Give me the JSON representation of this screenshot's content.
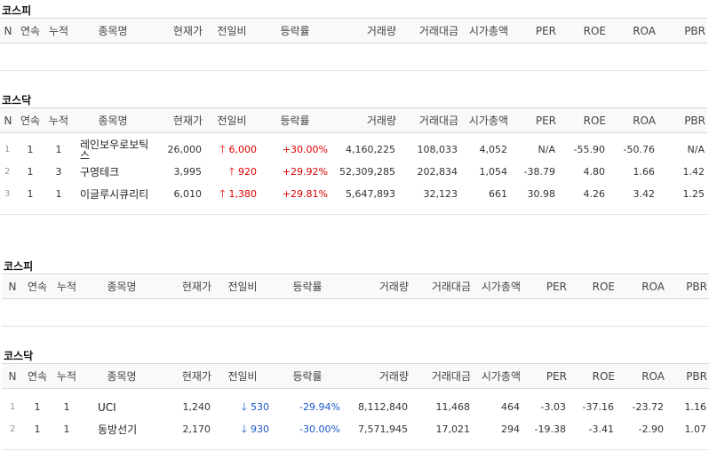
{
  "headers": [
    "N",
    "연속",
    "누적",
    "종목명",
    "현재가",
    "전일비",
    "등락률",
    "거래량",
    "거래대금",
    "시가총액",
    "PER",
    "ROE",
    "ROA",
    "PBR"
  ],
  "colors": {
    "up": "#dd0000",
    "down": "#1a58c9"
  },
  "s1": {
    "title": "코스피"
  },
  "s2": {
    "title": "코스닥",
    "rows": [
      {
        "n": "1",
        "cons": "1",
        "cum": "1",
        "name": "레인보우로보틱스",
        "price": "26,000",
        "arrow": "up-arrow-icon",
        "diff": "6,000",
        "rate": "+30.00%",
        "vol": "4,160,225",
        "amt": "108,033",
        "cap": "4,052",
        "per": "N/A",
        "roe": "-55.90",
        "roa": "-50.76",
        "pbr": "N/A"
      },
      {
        "n": "2",
        "cons": "1",
        "cum": "3",
        "name": "구영테크",
        "price": "3,995",
        "arrow": "up-arrow-icon",
        "diff": "920",
        "rate": "+29.92%",
        "vol": "52,309,285",
        "amt": "202,834",
        "cap": "1,054",
        "per": "-38.79",
        "roe": "4.80",
        "roa": "1.66",
        "pbr": "1.42"
      },
      {
        "n": "3",
        "cons": "1",
        "cum": "1",
        "name": "이글루시큐리티",
        "price": "6,010",
        "arrow": "up-arrow-icon",
        "diff": "1,380",
        "rate": "+29.81%",
        "vol": "5,647,893",
        "amt": "32,123",
        "cap": "661",
        "per": "30.98",
        "roe": "4.26",
        "roa": "3.42",
        "pbr": "1.25"
      }
    ]
  },
  "s3": {
    "title": "코스피"
  },
  "s4": {
    "title": "코스닥",
    "rows": [
      {
        "n": "1",
        "cons": "1",
        "cum": "1",
        "name": "UCI",
        "price": "1,240",
        "arrow": "down-arrow-icon",
        "diff": "530",
        "rate": "-29.94%",
        "vol": "8,112,840",
        "amt": "11,468",
        "cap": "464",
        "per": "-3.03",
        "roe": "-37.16",
        "roa": "-23.72",
        "pbr": "1.16"
      },
      {
        "n": "2",
        "cons": "1",
        "cum": "1",
        "name": "동방선기",
        "price": "2,170",
        "arrow": "down-arrow-icon",
        "diff": "930",
        "rate": "-30.00%",
        "vol": "7,571,945",
        "amt": "17,021",
        "cap": "294",
        "per": "-19.38",
        "roe": "-3.41",
        "roa": "-2.90",
        "pbr": "1.07"
      }
    ]
  }
}
